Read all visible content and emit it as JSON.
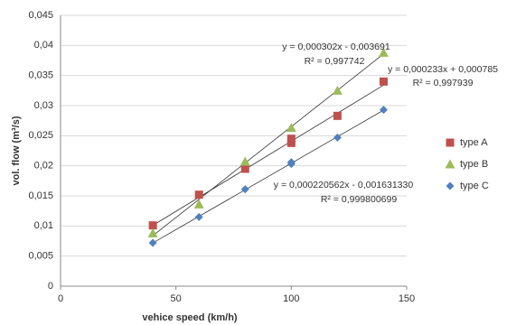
{
  "chart_data": {
    "type": "scatter",
    "x_label": "vehice speed (km/h)",
    "y_label": "vol. flow (m³/s)",
    "xlim": [
      0,
      150
    ],
    "xticks": [
      0,
      50,
      100,
      150
    ],
    "ylim": [
      0,
      0.045
    ],
    "yticks": [
      0,
      {
        "value": 0.005,
        "label": "0,005"
      },
      {
        "value": 0.01,
        "label": "0,01"
      },
      {
        "value": 0.015,
        "label": "0,015"
      },
      {
        "value": 0.02,
        "label": "0,02"
      },
      {
        "value": 0.025,
        "label": "0,025"
      },
      {
        "value": 0.03,
        "label": "0,03"
      },
      {
        "value": 0.035,
        "label": "0,035"
      },
      {
        "value": 0.04,
        "label": "0,04"
      },
      {
        "value": 0.045,
        "label": "0,045"
      }
    ],
    "grid": true,
    "series": [
      {
        "name": "type A",
        "color": "#c0504d",
        "marker": "square",
        "x": [
          40,
          60,
          80,
          100,
          100,
          120,
          140
        ],
        "values": [
          0.0101,
          0.0152,
          0.0195,
          0.0238,
          0.0245,
          0.0283,
          0.034
        ],
        "trendline": {
          "slope": 0.000233,
          "intercept": 0.000785,
          "label": "y = 0,000233x + 0,000785",
          "r2_label": "R² = 0,997939"
        }
      },
      {
        "name": "type B",
        "color": "#9bbb59",
        "marker": "triangle",
        "x": [
          40,
          60,
          80,
          100,
          120,
          140
        ],
        "values": [
          0.0088,
          0.0136,
          0.0207,
          0.0263,
          0.0325,
          0.0388
        ],
        "trendline": {
          "slope": 0.000302,
          "intercept": -0.003691,
          "label": "y = 0,000302x - 0,003691",
          "r2_label": "R² = 0,997742"
        }
      },
      {
        "name": "type C",
        "color": "#4f81bd",
        "marker": "diamond",
        "x": [
          40,
          60,
          80,
          100,
          100,
          120,
          140
        ],
        "values": [
          0.0072,
          0.0115,
          0.0161,
          0.0203,
          0.0206,
          0.0247,
          0.0293
        ],
        "trendline": {
          "slope": 0.000220562,
          "intercept": -0.00163133,
          "label": "y = 0,000220562x - 0,001631330",
          "r2_label": "R² = 0,999800699"
        }
      }
    ],
    "legend": "right"
  }
}
